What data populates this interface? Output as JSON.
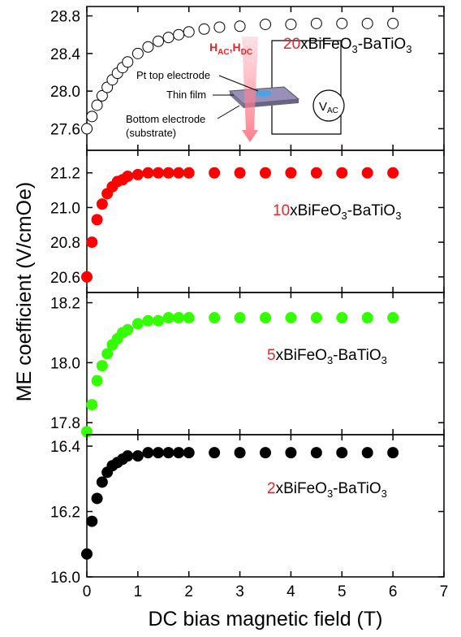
{
  "chart_data": [
    {
      "type": "scatter",
      "xlim": [
        0,
        7
      ],
      "ylim": [
        27.37,
        28.9
      ],
      "yticks": [
        27.6,
        {
          "value": 28,
          "label": "28.0"
        },
        28.4,
        28.8
      ],
      "x": [
        0,
        0.1,
        0.2,
        0.3,
        0.4,
        0.5,
        0.6,
        0.7,
        0.8,
        1.0,
        1.2,
        1.4,
        1.6,
        1.8,
        2.0,
        2.3,
        2.6,
        3.0,
        3.5,
        4.0,
        4.5,
        5.0,
        5.5,
        6.0
      ],
      "values": [
        27.6,
        27.73,
        27.85,
        27.95,
        28.04,
        28.12,
        28.19,
        28.25,
        28.31,
        28.4,
        28.47,
        28.53,
        28.57,
        28.6,
        28.63,
        28.66,
        28.68,
        28.69,
        28.71,
        28.71,
        28.72,
        28.72,
        28.72,
        28.72
      ],
      "color": "#000000",
      "marker_fill": "#ffffff",
      "annotation": {
        "prefix": "20",
        "text": "xBiFeO",
        "sub1": "3",
        "mid": "-BaTiO",
        "sub2": "3"
      },
      "inset": {
        "field": {
          "h1": "H",
          "s1": "AC",
          "comma": ",",
          "h2": "H",
          "s2": "DC"
        },
        "pt": "Pt top electrode",
        "film": "Thin film",
        "bottom": "Bottom electrode",
        "substrate": "(substrate)",
        "v": "V",
        "vsub": "AC"
      }
    },
    {
      "type": "scatter",
      "xlim": [
        0,
        7
      ],
      "ylim": [
        20.51,
        21.33
      ],
      "yticks": [
        20.6,
        20.8,
        {
          "value": 21,
          "label": "21.0"
        },
        21.2
      ],
      "x": [
        0,
        0.1,
        0.2,
        0.3,
        0.4,
        0.5,
        0.6,
        0.7,
        0.8,
        1.0,
        1.2,
        1.4,
        1.6,
        1.8,
        2.0,
        2.5,
        3.0,
        3.5,
        4.0,
        4.5,
        5.0,
        5.5,
        6.0
      ],
      "values": [
        20.6,
        20.8,
        20.93,
        21.02,
        21.08,
        21.12,
        21.15,
        21.16,
        21.18,
        21.19,
        21.2,
        21.2,
        21.2,
        21.2,
        21.2,
        21.2,
        21.2,
        21.2,
        21.2,
        21.2,
        21.2,
        21.2,
        21.2
      ],
      "color": "#ff0000",
      "marker_fill": "#ff0000",
      "annotation": {
        "prefix": "10",
        "text": "xBiFeO",
        "sub1": "3",
        "mid": "-BaTiO",
        "sub2": "3"
      }
    },
    {
      "type": "scatter",
      "xlim": [
        0,
        7
      ],
      "ylim": [
        17.76,
        18.234
      ],
      "yticks": [
        17.8,
        {
          "value": 18,
          "label": "18.0"
        },
        18.2
      ],
      "x": [
        0,
        0.1,
        0.2,
        0.3,
        0.4,
        0.5,
        0.6,
        0.7,
        0.8,
        1.0,
        1.2,
        1.4,
        1.6,
        1.8,
        2.0,
        2.5,
        3.0,
        3.5,
        4.0,
        4.5,
        5.0,
        5.5,
        6.0
      ],
      "values": [
        17.77,
        17.86,
        17.94,
        17.99,
        18.03,
        18.06,
        18.08,
        18.1,
        18.11,
        18.13,
        18.14,
        18.14,
        18.15,
        18.15,
        18.15,
        18.15,
        18.15,
        18.15,
        18.15,
        18.15,
        18.15,
        18.15,
        18.15
      ],
      "color": "#33ff00",
      "marker_fill": "#33ff00",
      "annotation": {
        "prefix": "5",
        "text": "xBiFeO",
        "sub1": "3",
        "mid": "-BaTiO",
        "sub2": "3"
      }
    },
    {
      "type": "scatter",
      "xlim": [
        0,
        7
      ],
      "ylim": [
        16.0,
        16.435
      ],
      "yticks": [
        {
          "value": 16,
          "label": "16.0"
        },
        16.2,
        16.4
      ],
      "xticks": [
        0,
        1,
        2,
        3,
        4,
        5,
        6,
        7
      ],
      "x": [
        0,
        0.1,
        0.2,
        0.3,
        0.4,
        0.5,
        0.6,
        0.7,
        0.8,
        1.0,
        1.2,
        1.4,
        1.6,
        1.8,
        2.0,
        2.5,
        3.0,
        3.5,
        4.0,
        4.5,
        5.0,
        5.5,
        6.0
      ],
      "values": [
        16.07,
        16.17,
        16.24,
        16.29,
        16.32,
        16.34,
        16.35,
        16.36,
        16.37,
        16.37,
        16.38,
        16.38,
        16.38,
        16.38,
        16.38,
        16.38,
        16.38,
        16.38,
        16.38,
        16.38,
        16.38,
        16.38,
        16.38
      ],
      "color": "#000000",
      "marker_fill": "#000000",
      "annotation": {
        "prefix": "2",
        "text": "xBiFeO",
        "sub1": "3",
        "mid": "-BaTiO",
        "sub2": "3"
      },
      "xlabel": "DC bias magnetic field (T)",
      "ylabel": "ME coefficient (V/cmOe)"
    }
  ]
}
